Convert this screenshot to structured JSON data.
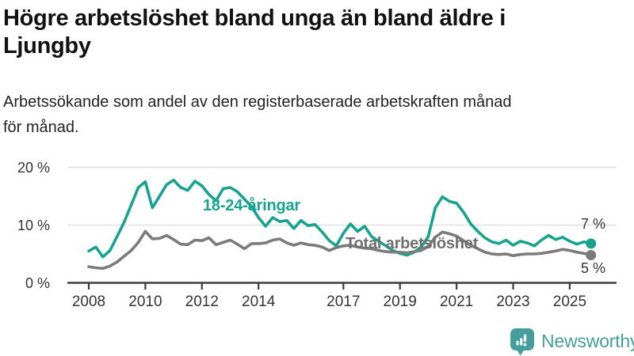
{
  "header": {
    "title": "Högre arbetslöshet bland unga än bland äldre i\nLjungby",
    "subtitle": "Arbetssökande som andel av den registerbaserade arbetskraften månad\nför månad."
  },
  "chart_data": {
    "type": "line",
    "title": "Högre arbetslöshet bland unga än bland äldre i Ljungby",
    "subtitle": "Arbetssökande som andel av den registerbaserade arbetskraften månad för månad.",
    "x_start": 2008,
    "x_step": 0.25,
    "x_ticks": [
      2008,
      2010,
      2012,
      2014,
      2017,
      2019,
      2021,
      2023,
      2025
    ],
    "y_ticks": [
      {
        "value": 0,
        "label": "0 %"
      },
      {
        "value": 10,
        "label": "10 %"
      },
      {
        "value": 20,
        "label": "20 %"
      }
    ],
    "ylim": [
      0,
      20
    ],
    "grid": "horizontal",
    "legend_position": "inline-labels",
    "series": [
      {
        "name": "18-24-åringar",
        "color": "#18a38f",
        "end_label": "7 %",
        "end_value": 7,
        "values": [
          5.5,
          6.2,
          4.5,
          5.6,
          8.0,
          10.5,
          13.5,
          16.5,
          17.5,
          13.0,
          15.0,
          17.0,
          17.8,
          16.5,
          16.0,
          17.6,
          16.8,
          15.3,
          14.2,
          16.3,
          16.5,
          15.8,
          14.5,
          13.2,
          11.3,
          9.8,
          11.3,
          10.6,
          10.8,
          9.4,
          10.8,
          9.9,
          10.1,
          8.8,
          7.3,
          6.4,
          8.6,
          10.2,
          8.9,
          9.8,
          8.0,
          7.2,
          6.4,
          5.6,
          5.1,
          4.8,
          5.3,
          6.2,
          8.0,
          13.0,
          14.9,
          14.1,
          13.8,
          12.2,
          10.2,
          8.9,
          7.8,
          7.1,
          6.8,
          7.4,
          6.5,
          7.2,
          6.9,
          6.4,
          7.4,
          8.2,
          7.5,
          7.9,
          7.2,
          6.7,
          7.1,
          6.8
        ]
      },
      {
        "name": "Total arbetslöshet",
        "color": "#7b7b7b",
        "end_label": "5 %",
        "end_value": 5,
        "values": [
          2.8,
          2.6,
          2.5,
          2.9,
          3.6,
          4.6,
          5.6,
          7.0,
          8.9,
          7.6,
          7.7,
          8.2,
          7.5,
          6.7,
          6.6,
          7.4,
          7.3,
          7.8,
          6.6,
          7.0,
          7.4,
          6.7,
          5.9,
          6.8,
          6.8,
          6.9,
          7.4,
          7.6,
          6.9,
          6.5,
          6.9,
          6.6,
          6.5,
          6.2,
          5.6,
          6.1,
          6.4,
          6.5,
          6.2,
          6.0,
          5.9,
          5.6,
          5.4,
          5.3,
          5.3,
          5.2,
          5.4,
          5.6,
          6.3,
          7.9,
          8.8,
          8.5,
          8.1,
          7.3,
          6.5,
          5.9,
          5.3,
          5.0,
          4.9,
          5.0,
          4.7,
          4.9,
          5.0,
          5.0,
          5.1,
          5.3,
          5.5,
          5.8,
          5.6,
          5.3,
          5.1,
          4.8
        ]
      }
    ],
    "colors": {
      "grid_line": "#dcdcdc",
      "axis_line": "#3d3d3d",
      "tick_text": "#333333"
    }
  },
  "footer": {
    "brand": "Newsworthy",
    "logo_icon": "bar-chart-speech-bubble-icon",
    "brand_color": "#459e9c"
  }
}
